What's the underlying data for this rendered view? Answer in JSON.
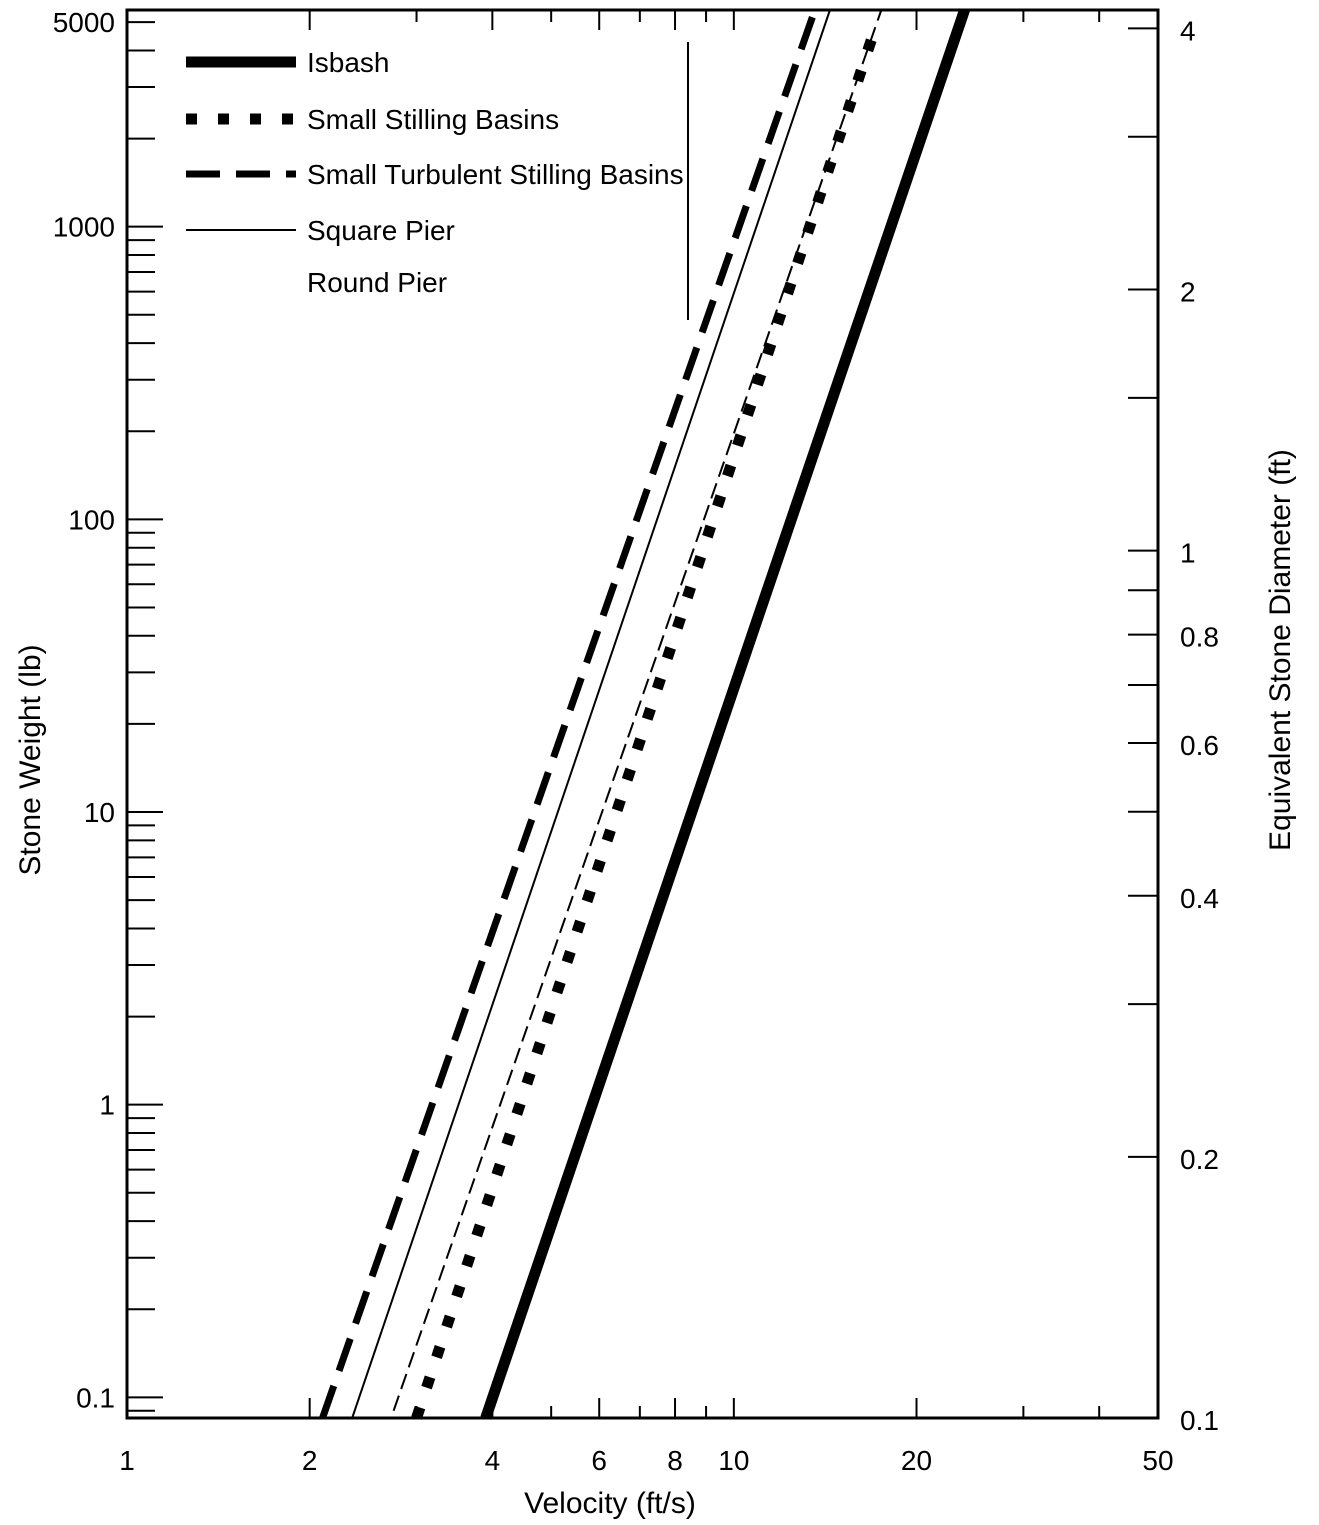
{
  "chart_data": {
    "type": "line",
    "x_scale": "log",
    "y_scale": "log",
    "y2_scale": "log",
    "xlabel": "Velocity (ft/s)",
    "ylabel": "Stone Weight (lb)",
    "y2label": "Equivalent Stone Diameter (ft)",
    "xlim": [
      1,
      50
    ],
    "ylim": [
      0.085,
      5500
    ],
    "y2lim": [
      0.1,
      4.2
    ],
    "x_ticks": [
      1,
      2,
      4,
      6,
      8,
      10,
      20,
      50
    ],
    "x_tick_labels": [
      "1",
      "2",
      "4",
      "6",
      "8",
      "10",
      "20",
      "50"
    ],
    "y_ticks": [
      0.1,
      1,
      10,
      100,
      1000,
      5000
    ],
    "y_tick_labels": [
      "0.1",
      "1",
      "10",
      "100",
      "1000",
      "5000"
    ],
    "y2_ticks": [
      0.1,
      0.2,
      0.4,
      0.6,
      0.8,
      1,
      2,
      4
    ],
    "y2_tick_labels": [
      "0.1",
      "0.2",
      "0.4",
      "0.6",
      "0.8",
      "1",
      "2",
      "4"
    ],
    "grid": false,
    "legend_position": "top-left",
    "series": [
      {
        "name": "Isbash",
        "style": "thick-solid",
        "x": [
          3.9,
          24
        ],
        "y": [
          0.085,
          5500
        ]
      },
      {
        "name": "Small Stilling Basins",
        "style": "dotted",
        "x": [
          3.0,
          17
        ],
        "y": [
          0.085,
          4600
        ]
      },
      {
        "name": "Small Turbulent Stilling Basins",
        "style": "dashed",
        "x": [
          2.1,
          13.6
        ],
        "y": [
          0.085,
          5500
        ]
      },
      {
        "name": "Square Pier",
        "style": "thin-solid",
        "x": [
          2.35,
          14.4
        ],
        "y": [
          0.085,
          5500
        ]
      },
      {
        "name": "Round Pier",
        "style": "thin-dashed",
        "x": [
          2.75,
          17.5
        ],
        "y": [
          0.09,
          5500
        ]
      }
    ]
  }
}
